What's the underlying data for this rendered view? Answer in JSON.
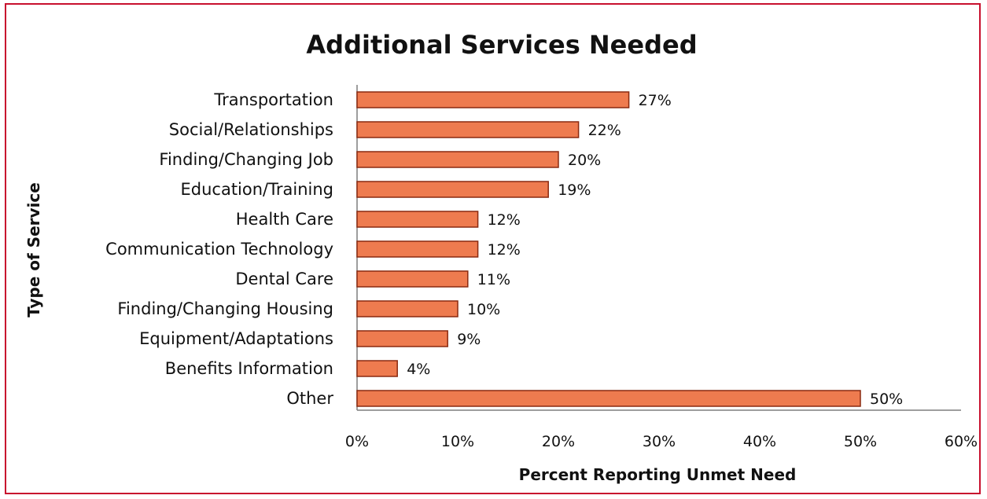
{
  "chart_data": {
    "type": "bar",
    "orientation": "horizontal",
    "title": "Additional Services Needed",
    "xlabel": "Percent Reporting Unmet Need",
    "ylabel": "Type of Service",
    "categories": [
      "Transportation",
      "Social/Relationships",
      "Finding/Changing Job",
      "Education/Training",
      "Health Care",
      "Communication Technology",
      "Dental Care",
      "Finding/Changing Housing",
      "Equipment/Adaptations",
      "Benefits Information",
      "Other"
    ],
    "values": [
      27,
      22,
      20,
      19,
      12,
      12,
      11,
      10,
      9,
      4,
      50
    ],
    "data_labels": [
      "27%",
      "22%",
      "20%",
      "19%",
      "12%",
      "12%",
      "11%",
      "10%",
      "9%",
      "4%",
      "50%"
    ],
    "xlim": [
      0,
      60
    ],
    "xticks": [
      0,
      10,
      20,
      30,
      40,
      50,
      60
    ],
    "xtick_labels": [
      "0%",
      "10%",
      "20%",
      "30%",
      "40%",
      "50%",
      "60%"
    ],
    "grid": false,
    "legend": "none",
    "bar_color": "#ee7b4f",
    "bar_edge_color": "#8a2a10"
  }
}
